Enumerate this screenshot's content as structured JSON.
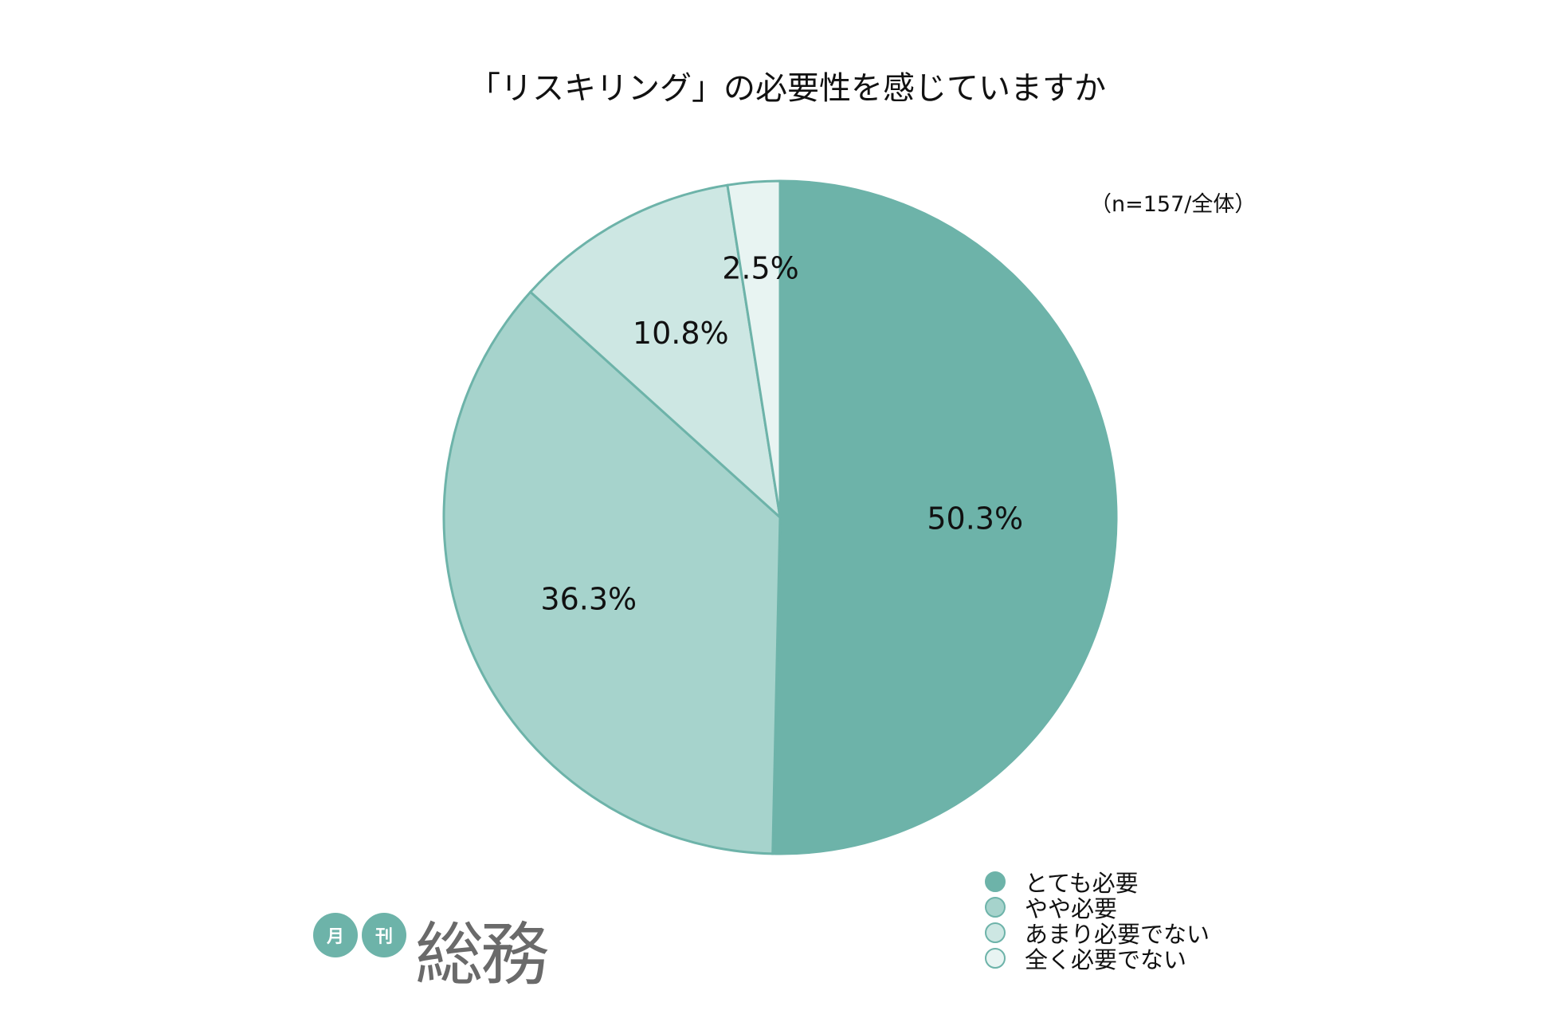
{
  "chart_data": {
    "type": "pie",
    "title": "「リスキリング」の必要性を感じていますか",
    "note": "（n=157/全体）",
    "categories": [
      "とても必要",
      "やや必要",
      "あまり必要でない",
      "全く必要でない"
    ],
    "values": [
      50.3,
      36.3,
      10.8,
      2.5
    ],
    "labels": [
      "50.3%",
      "36.3%",
      "10.8%",
      "2.5%"
    ],
    "colors": [
      "#6db3a9",
      "#a6d3cc",
      "#cde7e3",
      "#e8f4f2"
    ],
    "stroke_color": "#6db3a9",
    "start": "top",
    "direction": "clockwise",
    "legend_position": "bottom-right"
  },
  "logo": {
    "small1": "月",
    "small2": "刊",
    "main": "総務"
  }
}
